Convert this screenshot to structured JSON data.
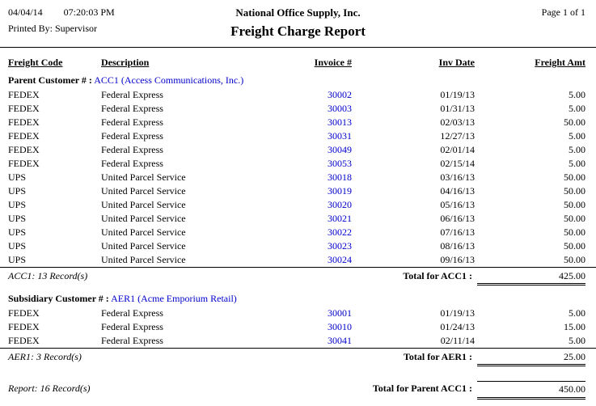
{
  "page": {
    "date": "04/04/14",
    "time": "07:20:03 PM",
    "company": "National Office Supply, Inc.",
    "page_label": "Page 1 of 1",
    "printed_by": "Printed By: Supervisor",
    "title": "Freight Charge Report"
  },
  "table": {
    "columns": [
      "Freight Code",
      "Description",
      "Invoice #",
      "Inv Date",
      "Freight Amt"
    ]
  },
  "sections": [
    {
      "group_label": "Parent Customer # :",
      "customer": "ACC1 (Access Communications, Inc.)",
      "rows": [
        {
          "code": "FEDEX",
          "description": "Federal Express",
          "invoice": "30002",
          "date": "01/19/13",
          "amount": "5.00"
        },
        {
          "code": "FEDEX",
          "description": "Federal Express",
          "invoice": "30003",
          "date": "01/31/13",
          "amount": "5.00"
        },
        {
          "code": "FEDEX",
          "description": "Federal Express",
          "invoice": "30013",
          "date": "02/03/13",
          "amount": "50.00"
        },
        {
          "code": "FEDEX",
          "description": "Federal Express",
          "invoice": "30031",
          "date": "12/27/13",
          "amount": "5.00"
        },
        {
          "code": "FEDEX",
          "description": "Federal Express",
          "invoice": "30049",
          "date": "02/01/14",
          "amount": "5.00"
        },
        {
          "code": "FEDEX",
          "description": "Federal Express",
          "invoice": "30053",
          "date": "02/15/14",
          "amount": "5.00"
        },
        {
          "code": "UPS",
          "description": "United Parcel Service",
          "invoice": "30018",
          "date": "03/16/13",
          "amount": "50.00"
        },
        {
          "code": "UPS",
          "description": "United Parcel Service",
          "invoice": "30019",
          "date": "04/16/13",
          "amount": "50.00"
        },
        {
          "code": "UPS",
          "description": "United Parcel Service",
          "invoice": "30020",
          "date": "05/16/13",
          "amount": "50.00"
        },
        {
          "code": "UPS",
          "description": "United Parcel Service",
          "invoice": "30021",
          "date": "06/16/13",
          "amount": "50.00"
        },
        {
          "code": "UPS",
          "description": "United Parcel Service",
          "invoice": "30022",
          "date": "07/16/13",
          "amount": "50.00"
        },
        {
          "code": "UPS",
          "description": "United Parcel Service",
          "invoice": "30023",
          "date": "08/16/13",
          "amount": "50.00"
        },
        {
          "code": "UPS",
          "description": "United Parcel Service",
          "invoice": "30024",
          "date": "09/16/13",
          "amount": "50.00"
        }
      ],
      "record_count": "ACC1: 13 Record(s)",
      "total_label": "Total for ACC1 :",
      "total_amount": "425.00"
    },
    {
      "group_label": "Subsidiary Customer # :",
      "customer": "AER1 (Acme Emporium Retail)",
      "rows": [
        {
          "code": "FEDEX",
          "description": "Federal Express",
          "invoice": "30001",
          "date": "01/19/13",
          "amount": "5.00"
        },
        {
          "code": "FEDEX",
          "description": "Federal Express",
          "invoice": "30010",
          "date": "01/24/13",
          "amount": "15.00"
        },
        {
          "code": "FEDEX",
          "description": "Federal Express",
          "invoice": "30041",
          "date": "02/11/14",
          "amount": "5.00"
        }
      ],
      "record_count": "AER1: 3 Record(s)",
      "total_label": "Total for AER1 :",
      "total_amount": "25.00"
    }
  ],
  "report_footer": {
    "record_count": "Report: 16 Record(s)",
    "total_label": "Total for Parent ACC1 :",
    "total_amount": "450.00"
  },
  "colors": {
    "link": "#0000CC",
    "text": "#000000",
    "rule": "#000000"
  }
}
